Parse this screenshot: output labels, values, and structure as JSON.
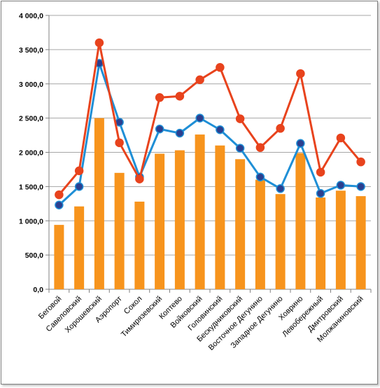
{
  "chart_data": {
    "type": "bar",
    "categories": [
      "Беговой",
      "Савеловский",
      "Хорошевский",
      "Аэропорт",
      "Сокол",
      "Тимирязевский",
      "Коптево",
      "Войковский",
      "Головинский",
      "Бескудниковский",
      "Восточное Дегунино",
      "Западное Дегунино",
      "Ховрино",
      "Левобережный",
      "Дмитровский",
      "Молжаниновский"
    ],
    "series": [
      {
        "type": "bar",
        "color": "#f7941d",
        "values": [
          940,
          1210,
          2500,
          1700,
          1280,
          1980,
          2030,
          2260,
          2100,
          1900,
          1600,
          1390,
          1990,
          1340,
          1440,
          1360
        ]
      },
      {
        "type": "line",
        "color": "#1f8fd6",
        "marker_color": "#2b3f8f",
        "values": [
          1230,
          1500,
          3300,
          2440,
          1640,
          2340,
          2280,
          2500,
          2330,
          2060,
          1640,
          1470,
          2130,
          1400,
          1520,
          1500
        ]
      },
      {
        "type": "line",
        "color": "#e8431d",
        "marker_color": "#e8431d",
        "values": [
          1380,
          1730,
          3600,
          2140,
          1610,
          2800,
          2820,
          3060,
          3240,
          2490,
          2070,
          2350,
          3150,
          1710,
          2210,
          1860
        ]
      }
    ],
    "y_ticks": [
      "0,0",
      "500,0",
      "1 000,0",
      "1 500,0",
      "2 000,0",
      "2 500,0",
      "3 000,0",
      "3 500,0",
      "4 000,0"
    ],
    "ylim": [
      0,
      4000
    ],
    "grid": true,
    "legend": "none"
  }
}
